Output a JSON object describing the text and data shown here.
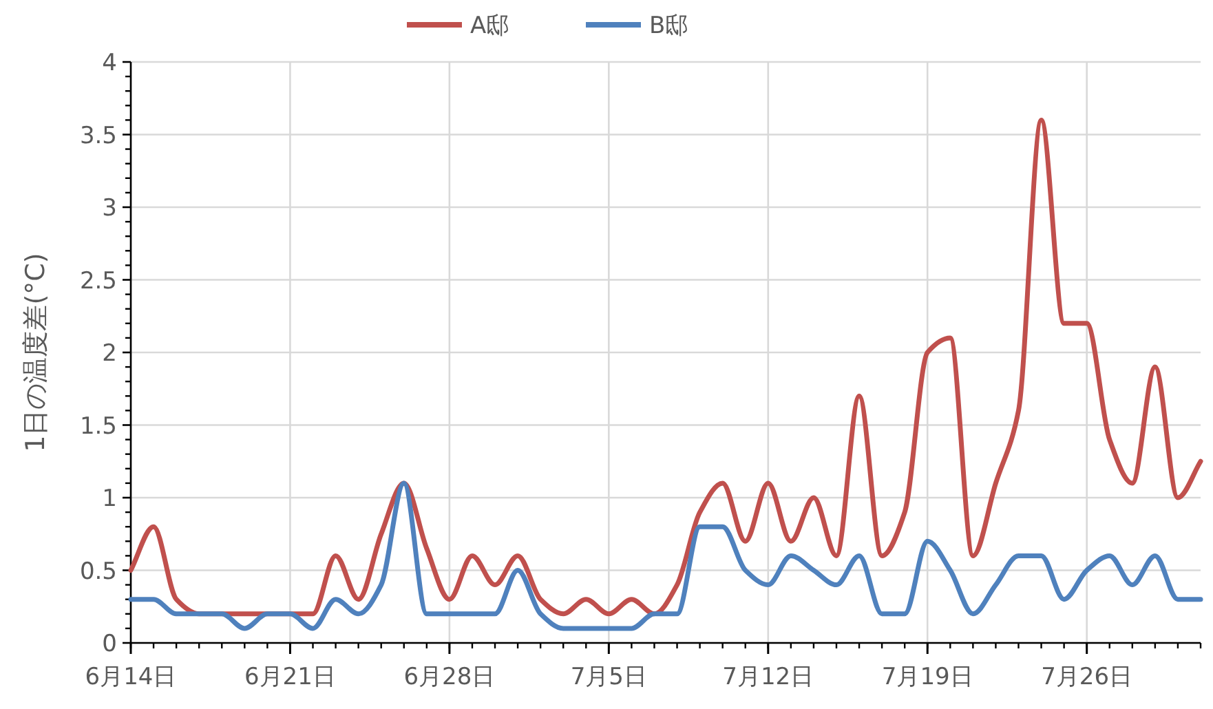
{
  "chart_data": {
    "type": "line",
    "ylabel": "1日の温度差(°C)",
    "x": [
      "--06-14",
      "--06-15",
      "--06-16",
      "--06-17",
      "--06-18",
      "--06-19",
      "--06-20",
      "--06-21",
      "--06-22",
      "--06-23",
      "--06-24",
      "--06-25",
      "--06-26",
      "--06-27",
      "--06-28",
      "--06-29",
      "--06-30",
      "--07-01",
      "--07-02",
      "--07-03",
      "--07-04",
      "--07-05",
      "--07-06",
      "--07-07",
      "--07-08",
      "--07-09",
      "--07-10",
      "--07-11",
      "--07-12",
      "--07-13",
      "--07-14",
      "--07-15",
      "--07-16",
      "--07-17",
      "--07-18",
      "--07-19",
      "--07-20",
      "--07-21",
      "--07-22",
      "--07-23",
      "--07-24",
      "--07-25",
      "--07-26",
      "--07-27",
      "--07-28",
      "--07-29",
      "--07-30",
      "--07-31"
    ],
    "series": [
      {
        "name": "A邸",
        "color": "#c0504d",
        "values": [
          0.5,
          0.8,
          0.3,
          0.2,
          0.2,
          0.2,
          0.2,
          0.2,
          0.2,
          0.6,
          0.3,
          0.75,
          1.1,
          0.65,
          0.3,
          0.6,
          0.4,
          0.6,
          0.3,
          0.2,
          0.3,
          0.2,
          0.3,
          0.2,
          0.4,
          0.9,
          1.1,
          0.7,
          1.1,
          0.7,
          1.0,
          0.6,
          1.7,
          0.6,
          0.9,
          2.0,
          2.1,
          0.6,
          1.1,
          1.6,
          3.6,
          2.2,
          2.2,
          1.4,
          1.1,
          1.9,
          1.0,
          1.25
        ]
      },
      {
        "name": "B邸",
        "color": "#4f81bd",
        "values": [
          0.3,
          0.3,
          0.2,
          0.2,
          0.2,
          0.1,
          0.2,
          0.2,
          0.1,
          0.3,
          0.2,
          0.4,
          1.1,
          0.2,
          0.2,
          0.2,
          0.2,
          0.5,
          0.2,
          0.1,
          0.1,
          0.1,
          0.1,
          0.2,
          0.2,
          0.8,
          0.8,
          0.5,
          0.4,
          0.6,
          0.5,
          0.4,
          0.6,
          0.2,
          0.2,
          0.7,
          0.5,
          0.2,
          0.4,
          0.6,
          0.6,
          0.3,
          0.5,
          0.6,
          0.4,
          0.6,
          0.3,
          0.3
        ]
      }
    ],
    "xlim": [
      "--06-14",
      "--07-31"
    ],
    "xticks": [
      {
        "value": "--06-14",
        "label": "6月14日"
      },
      {
        "value": "--06-21",
        "label": "6月21日"
      },
      {
        "value": "--06-28",
        "label": "6月28日"
      },
      {
        "value": "--07-05",
        "label": "7月5日"
      },
      {
        "value": "--07-12",
        "label": "7月12日"
      },
      {
        "value": "--07-19",
        "label": "7月19日"
      },
      {
        "value": "--07-26",
        "label": "7月26日"
      }
    ],
    "ylim": [
      0,
      4
    ],
    "yticks": [
      0,
      0.5,
      1,
      1.5,
      2,
      2.5,
      3,
      3.5,
      4
    ],
    "grid": true,
    "legend": "top",
    "line_style": "solid",
    "marker": "none"
  }
}
